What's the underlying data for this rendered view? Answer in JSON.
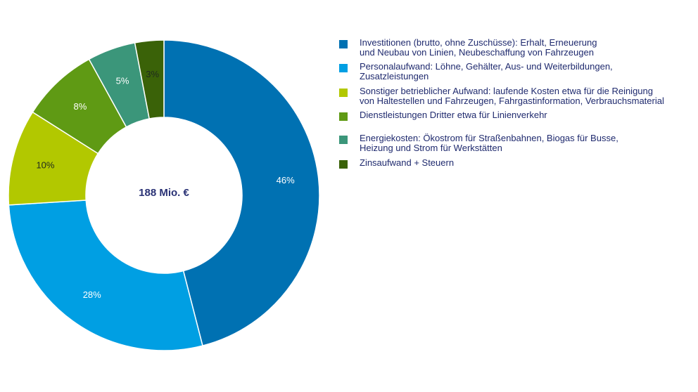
{
  "chart_data": {
    "type": "pie",
    "variant": "donut",
    "center_label": "188 Mio. €",
    "series": [
      {
        "label": "Investitionen (brutto, ohne Zuschüsse): Erhalt, Erneuerung\nund Neubau von Linien, Neubeschaffung von Fahrzeugen",
        "value": 46,
        "value_label": "46%",
        "color": "#0071b2"
      },
      {
        "label": "Personalaufwand: Löhne, Gehälter, Aus- und Weiterbildungen,\nZusatzleistungen",
        "value": 28,
        "value_label": "28%",
        "color": "#009fe3"
      },
      {
        "label": "Sonstiger betrieblicher Aufwand: laufende Kosten etwa für die Reinigung\nvon Haltestellen und Fahrzeugen, Fahrgastinformation, Verbrauchsmaterial",
        "value": 10,
        "value_label": "10%",
        "color": "#b2c800"
      },
      {
        "label": "Dienstleistungen Dritter etwa für Linienverkehr",
        "value": 8,
        "value_label": "8%",
        "color": "#5f9a14"
      },
      {
        "label": "Energiekosten: Ökostrom für Straßenbahnen, Biogas für Busse,\nHeizung und Strom für Werkstätten",
        "value": 5,
        "value_label": "5%",
        "color": "#3b967a"
      },
      {
        "label": "Zinsaufwand + Steuern",
        "value": 3,
        "value_label": "3%",
        "color": "#3a6208"
      }
    ],
    "legend_position": "right"
  }
}
